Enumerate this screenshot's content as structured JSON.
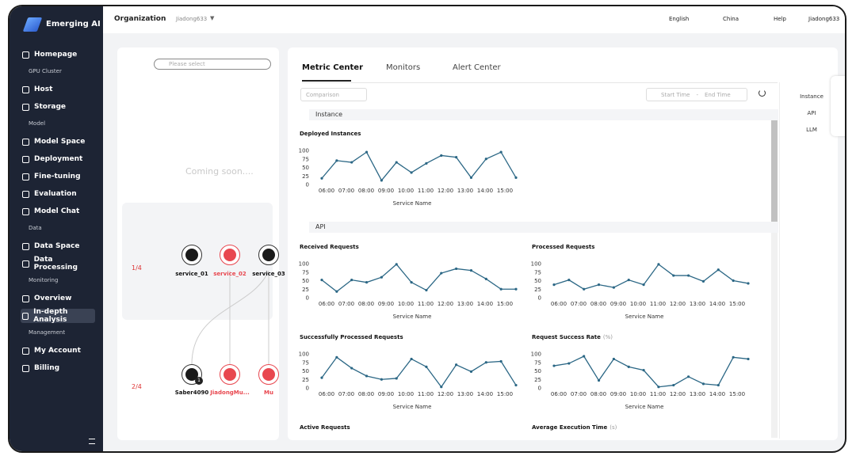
{
  "brand": "Emerging AI",
  "topbar": {
    "org_label": "Organization",
    "org_value": "Jiadong633",
    "language": "English",
    "region": "China",
    "help": "Help",
    "user": "Jiadong633"
  },
  "nav": [
    {
      "items": [
        "Homepage"
      ]
    },
    {
      "title": "GPU Cluster",
      "items": [
        "Host",
        "Storage"
      ]
    },
    {
      "title": "Model",
      "items": [
        "Model Space",
        "Deployment",
        "Fine-tuning",
        "Evaluation",
        "Model Chat"
      ]
    },
    {
      "title": "Data",
      "items": [
        "Data Space",
        "Data Processing"
      ]
    },
    {
      "title": "Monitoring",
      "items": [
        "Overview",
        "In-depth Analysis"
      ]
    },
    {
      "title": "Management",
      "items": [
        "My Account",
        "Billing"
      ]
    }
  ],
  "left_panel": {
    "search_placeholder": "Please select",
    "coming_soon": "Coming soon....",
    "services": {
      "count": "1/4",
      "nodes": [
        "service_01",
        "service_02",
        "service_03"
      ]
    },
    "machines": {
      "count": "2/4",
      "badge": "1",
      "nodes": [
        "Saber4090",
        "JiadongMu...",
        "Mu"
      ]
    }
  },
  "tabs": [
    "Metric Center",
    "Monitors",
    "Alert Center"
  ],
  "filters": {
    "comparison": "Comparison",
    "start": "Start Time",
    "separator": "-",
    "end": "End Time"
  },
  "side_nav": [
    "Instance",
    "API",
    "LLM"
  ],
  "sections": [
    "Instance",
    "API"
  ],
  "charts": [
    {
      "type": "line",
      "title": "Deployed Instances",
      "x_label": "Service Name",
      "xticks": [
        "06:00",
        "07:00",
        "08:00",
        "09:00",
        "10:00",
        "11:00",
        "12:00",
        "13:00",
        "14:00",
        "15:00"
      ],
      "ylim": [
        0,
        100
      ],
      "yticks": [
        0,
        25,
        50,
        75,
        100
      ],
      "color": "#2b6785",
      "values": [
        18,
        70,
        65,
        95,
        12,
        65,
        35,
        62,
        85,
        80,
        20,
        75,
        95,
        20
      ]
    },
    {
      "type": "line",
      "title": "Received Requests",
      "x_label": "Service Name",
      "xticks": [
        "06:00",
        "07:00",
        "08:00",
        "09:00",
        "10:00",
        "11:00",
        "12:00",
        "13:00",
        "14:00",
        "15:00"
      ],
      "ylim": [
        0,
        100
      ],
      "yticks": [
        0,
        25,
        50,
        75,
        100
      ],
      "color": "#2b6785",
      "values": [
        52,
        18,
        52,
        45,
        60,
        98,
        45,
        22,
        72,
        85,
        80,
        55,
        25,
        25
      ]
    },
    {
      "type": "line",
      "title": "Processed Requests",
      "x_label": "Service Name",
      "xticks": [
        "06:00",
        "07:00",
        "08:00",
        "09:00",
        "10:00",
        "11:00",
        "12:00",
        "13:00",
        "14:00",
        "15:00"
      ],
      "ylim": [
        0,
        100
      ],
      "yticks": [
        0,
        25,
        50,
        75,
        100
      ],
      "color": "#2b6785",
      "values": [
        38,
        52,
        25,
        38,
        30,
        52,
        38,
        98,
        65,
        65,
        48,
        82,
        50,
        42
      ]
    },
    {
      "type": "line",
      "title": "Successfully Processed Requests",
      "x_label": "Service Name",
      "xticks": [
        "06:00",
        "07:00",
        "08:00",
        "09:00",
        "10:00",
        "11:00",
        "12:00",
        "13:00",
        "14:00",
        "15:00"
      ],
      "ylim": [
        0,
        100
      ],
      "yticks": [
        0,
        25,
        50,
        75,
        100
      ],
      "color": "#2b6785",
      "values": [
        30,
        90,
        58,
        35,
        25,
        28,
        85,
        62,
        3,
        68,
        48,
        75,
        78,
        8
      ]
    },
    {
      "type": "line",
      "title": "Request Success Rate",
      "unit": "(%)",
      "x_label": "Service Name",
      "xticks": [
        "06:00",
        "07:00",
        "08:00",
        "09:00",
        "10:00",
        "11:00",
        "12:00",
        "13:00",
        "14:00",
        "15:00"
      ],
      "ylim": [
        0,
        100
      ],
      "yticks": [
        0,
        25,
        50,
        75,
        100
      ],
      "color": "#2b6785",
      "values": [
        65,
        72,
        93,
        22,
        85,
        62,
        52,
        3,
        8,
        33,
        12,
        8,
        90,
        85
      ]
    },
    {
      "type": "line",
      "title": "Active Requests"
    },
    {
      "type": "line",
      "title": "Average Execution Time",
      "unit": "(s)"
    }
  ]
}
